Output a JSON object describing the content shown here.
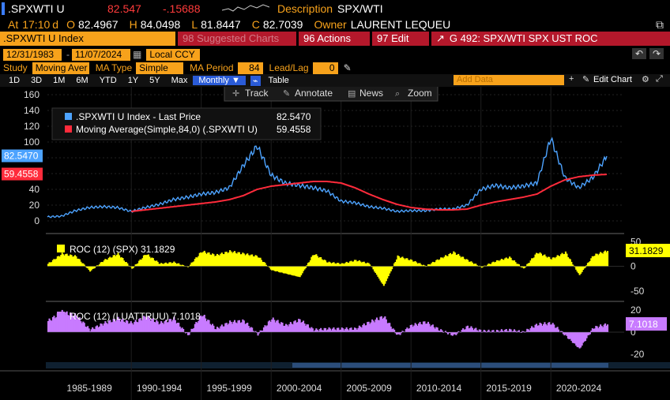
{
  "header": {
    "ticker": ".SPXWTI U",
    "last": "82.547",
    "change": "-.15688",
    "desc_label": "Description",
    "desc_value": "SPX/WTI",
    "at_label": "At",
    "time": "17:10",
    "day_flag": "d",
    "o_label": "O",
    "open": "82.4967",
    "h_label": "H",
    "high": "84.0498",
    "l_label": "L",
    "low": "81.8447",
    "c_label": "C",
    "close": "82.7039",
    "owner_label": "Owner",
    "owner": "LAURENT LEQUEU"
  },
  "toolbar": {
    "security": ".SPXWTI U Index",
    "suggested": "98 Suggested Charts",
    "actions": "96 Actions",
    "edit": "97 Edit",
    "graph_title": "G 492: SPX/WTI SPX UST ROC"
  },
  "controls": {
    "start_date": "12/31/1983",
    "end_date": "11/07/2024",
    "currency": "Local CCY",
    "study_label": "Study",
    "study_value": "Moving Aver",
    "ma_type_label": "MA Type",
    "ma_type_value": "Simple",
    "ma_period_label": "MA Period",
    "ma_period_value": "84",
    "leadlag_label": "Lead/Lag",
    "leadlag_value": "0"
  },
  "timeframes": [
    "1D",
    "3D",
    "1M",
    "6M",
    "YTD",
    "1Y",
    "5Y",
    "Max",
    "Monthly ▼"
  ],
  "right_tools": {
    "table": "Table",
    "add_data": "Add Data",
    "edit_chart": "Edit Chart"
  },
  "chart_tools": {
    "track": "Track",
    "annotate": "Annotate",
    "news": "News",
    "zoom": "Zoom"
  },
  "colors": {
    "main_series": "#4da3ff",
    "ma_series": "#ff2b3b",
    "roc_spx": "#ffff00",
    "roc_luattruu": "#c87bff",
    "bloomberg_amber": "#f7a21b"
  },
  "chart_data": [
    {
      "type": "line",
      "legend": [
        {
          "name": ".SPXWTI U Index - Last Price",
          "value": "82.5470"
        },
        {
          "name": "Moving Average(Simple,84,0) (.SPXWTI U)",
          "value": "59.4558"
        }
      ],
      "right_labels": {
        "last": "82.5470",
        "ma": "59.4558"
      },
      "yticks": [
        "160",
        "140",
        "120",
        "100",
        "80",
        "60",
        "40",
        "20",
        "0"
      ],
      "ylim": [
        -5,
        165
      ],
      "x": [
        1984,
        1985,
        1986,
        1987,
        1988,
        1989,
        1990,
        1991,
        1992,
        1993,
        1994,
        1995,
        1996,
        1997,
        1998,
        1999,
        2000,
        2001,
        2002,
        2003,
        2004,
        2005,
        2006,
        2007,
        2008,
        2009,
        2010,
        2011,
        2012,
        2013,
        2014,
        2015,
        2016,
        2017,
        2018,
        2019,
        2020,
        2021,
        2022,
        2023,
        2024
      ],
      "series": [
        {
          "name": ".SPXWTI U Index - Last Price",
          "values": [
            5,
            6,
            13,
            17,
            18,
            17,
            12,
            17,
            21,
            27,
            30,
            34,
            36,
            42,
            70,
            95,
            58,
            48,
            45,
            42,
            38,
            25,
            23,
            18,
            16,
            12,
            13,
            13,
            15,
            15,
            20,
            40,
            45,
            42,
            44,
            48,
            105,
            55,
            42,
            55,
            82
          ]
        },
        {
          "name": "Moving Average(Simple,84,0) (.SPXWTI U)",
          "values": [
            null,
            null,
            null,
            null,
            null,
            null,
            12,
            14,
            16,
            18,
            20,
            22,
            24,
            27,
            32,
            40,
            44,
            46,
            48,
            50,
            50,
            48,
            42,
            34,
            27,
            21,
            17,
            15,
            14,
            14,
            15,
            20,
            24,
            27,
            30,
            34,
            44,
            52,
            56,
            58,
            59
          ]
        }
      ]
    },
    {
      "type": "bar",
      "legend": "ROC (12) (SPX) 31.1829",
      "right_label": "31.1829",
      "yticks": [
        "50",
        "0",
        "-50"
      ],
      "ylim": [
        -60,
        60
      ],
      "x": [
        1984,
        1985,
        1986,
        1987,
        1988,
        1989,
        1990,
        1991,
        1992,
        1993,
        1994,
        1995,
        1996,
        1997,
        1998,
        1999,
        2000,
        2001,
        2002,
        2003,
        2004,
        2005,
        2006,
        2007,
        2008,
        2009,
        2010,
        2011,
        2012,
        2013,
        2014,
        2015,
        2016,
        2017,
        2018,
        2019,
        2020,
        2021,
        2022,
        2023,
        2024
      ],
      "values": [
        5,
        25,
        20,
        -10,
        12,
        25,
        -5,
        25,
        5,
        8,
        -2,
        30,
        22,
        30,
        25,
        20,
        -8,
        -15,
        -22,
        25,
        8,
        5,
        12,
        5,
        -40,
        20,
        12,
        0,
        15,
        28,
        12,
        -2,
        10,
        18,
        -5,
        28,
        15,
        28,
        -18,
        22,
        31
      ]
    },
    {
      "type": "bar",
      "legend": "ROC (12) (LUATTRUU) 7.1018",
      "right_label": "7.1018",
      "yticks": [
        "20",
        "0",
        "-20"
      ],
      "ylim": [
        -25,
        25
      ],
      "x": [
        1984,
        1985,
        1986,
        1987,
        1988,
        1989,
        1990,
        1991,
        1992,
        1993,
        1994,
        1995,
        1996,
        1997,
        1998,
        1999,
        2000,
        2001,
        2002,
        2003,
        2004,
        2005,
        2006,
        2007,
        2008,
        2009,
        2010,
        2011,
        2012,
        2013,
        2014,
        2015,
        2016,
        2017,
        2018,
        2019,
        2020,
        2021,
        2022,
        2023,
        2024
      ],
      "values": [
        10,
        18,
        15,
        2,
        8,
        12,
        8,
        14,
        8,
        12,
        -3,
        16,
        3,
        9,
        10,
        -2,
        12,
        6,
        11,
        2,
        3,
        3,
        3,
        9,
        14,
        -3,
        6,
        9,
        2,
        -3,
        5,
        1,
        1,
        2,
        0,
        7,
        8,
        -3,
        -15,
        4,
        7
      ]
    }
  ],
  "x_axis_labels": [
    "1985-1989",
    "1990-1994",
    "1995-1999",
    "2000-2004",
    "2005-2009",
    "2010-2014",
    "2015-2019",
    "2020-2024"
  ]
}
